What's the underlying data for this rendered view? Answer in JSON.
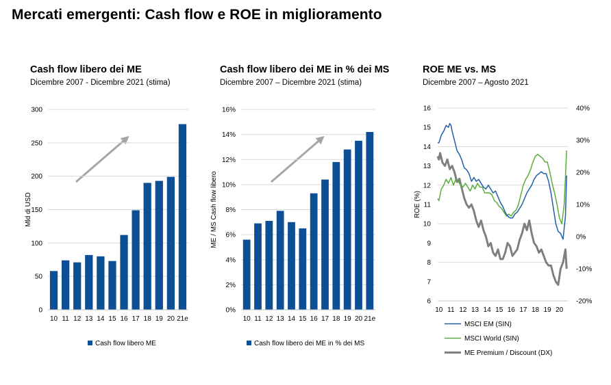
{
  "page_title": "Mercati emergenti: Cash flow e ROE in miglioramento",
  "colors": {
    "bar": "#0d4f94",
    "em": "#1f5ea8",
    "world": "#5aac3a",
    "premium": "#7f7f7f",
    "grid": "#d9d9d9",
    "arrow": "#a6a6a6"
  },
  "chart_data": [
    {
      "type": "bar",
      "title": "Cash flow libero dei ME",
      "subtitle": "Dicembre 2007 - Dicembre 2021 (stima)",
      "ylabel": "Mld di USD",
      "categories": [
        "10",
        "11",
        "12",
        "13",
        "14",
        "15",
        "16",
        "17",
        "18",
        "19",
        "20",
        "21e"
      ],
      "values": [
        58,
        74,
        71,
        82,
        80,
        73,
        112,
        149,
        190,
        193,
        199,
        278
      ],
      "ylim": [
        0,
        300
      ],
      "yticks": [
        "0",
        "50",
        "100",
        "150",
        "200",
        "250",
        "300"
      ],
      "legend": "Cash flow libero ME",
      "grid": true
    },
    {
      "type": "bar",
      "title": "Cash flow libero dei ME in % dei MS",
      "subtitle": "Dicembre 2007 – Dicembre 2021 (stima)",
      "ylabel": "ME / MS Cash flow libero",
      "categories": [
        "10",
        "11",
        "12",
        "13",
        "14",
        "15",
        "16",
        "17",
        "18",
        "19",
        "20",
        "21e"
      ],
      "values": [
        5.6,
        6.9,
        7.1,
        7.9,
        7.0,
        6.5,
        9.3,
        10.4,
        11.8,
        12.8,
        13.5,
        14.2
      ],
      "ylim": [
        0,
        16
      ],
      "yticks": [
        "0%",
        "2%",
        "4%",
        "6%",
        "8%",
        "10%",
        "12%",
        "14%",
        "16%"
      ],
      "legend": "Cash flow libero dei ME in % dei MS",
      "grid": true
    },
    {
      "type": "line",
      "title": "ROE ME vs. MS",
      "subtitle": "Dicembre 2007 – Agosto 2021",
      "ylabel": "ROE (%)",
      "x_ticks": [
        "10",
        "11",
        "12",
        "13",
        "14",
        "15",
        "16",
        "17",
        "18",
        "19",
        "20"
      ],
      "ylim_left": [
        6,
        16
      ],
      "ylim_right": [
        -20,
        40
      ],
      "yticks_left": [
        "6",
        "7",
        "8",
        "9",
        "10",
        "11",
        "12",
        "13",
        "14",
        "15",
        "16"
      ],
      "yticks_right": [
        "-20%",
        "-10%",
        "0%",
        "10%",
        "20%",
        "30%",
        "40%"
      ],
      "grid": true,
      "series": [
        {
          "name": "MSCI EM (SIN)",
          "axis": "left",
          "x": [
            2009.9,
            2010.0,
            2010.2,
            2010.4,
            2010.6,
            2010.8,
            2010.9,
            2011.0,
            2011.1,
            2011.3,
            2011.5,
            2011.7,
            2011.9,
            2012.1,
            2012.3,
            2012.5,
            2012.7,
            2012.9,
            2013.1,
            2013.3,
            2013.5,
            2013.7,
            2013.9,
            2014.1,
            2014.3,
            2014.5,
            2014.7,
            2014.9,
            2015.1,
            2015.3,
            2015.5,
            2015.7,
            2015.9,
            2016.1,
            2016.3,
            2016.5,
            2016.7,
            2016.9,
            2017.1,
            2017.3,
            2017.5,
            2017.7,
            2017.9,
            2018.1,
            2018.3,
            2018.5,
            2018.7,
            2018.9,
            2019.1,
            2019.3,
            2019.5,
            2019.7,
            2019.9,
            2020.1,
            2020.3,
            2020.5,
            2020.6
          ],
          "values": [
            14.2,
            14.2,
            14.6,
            14.8,
            15.1,
            15.0,
            15.2,
            15.1,
            14.8,
            14.3,
            13.8,
            13.6,
            13.3,
            12.9,
            12.8,
            12.6,
            12.2,
            12.4,
            12.2,
            12.3,
            12.1,
            11.9,
            11.8,
            12.0,
            11.8,
            11.6,
            11.7,
            11.4,
            11.1,
            10.9,
            10.6,
            10.4,
            10.3,
            10.3,
            10.5,
            10.6,
            10.8,
            11.0,
            11.3,
            11.6,
            11.8,
            12.0,
            12.3,
            12.5,
            12.6,
            12.7,
            12.6,
            12.6,
            12.2,
            11.6,
            10.8,
            10.0,
            9.6,
            9.5,
            9.2,
            10.4,
            12.5
          ]
        },
        {
          "name": "MSCI World (SIN)",
          "axis": "left",
          "x": [
            2009.9,
            2010.0,
            2010.2,
            2010.4,
            2010.6,
            2010.8,
            2011.0,
            2011.2,
            2011.4,
            2011.6,
            2011.8,
            2012.0,
            2012.2,
            2012.4,
            2012.6,
            2012.8,
            2013.0,
            2013.2,
            2013.4,
            2013.6,
            2013.8,
            2014.0,
            2014.2,
            2014.4,
            2014.6,
            2014.8,
            2015.0,
            2015.2,
            2015.4,
            2015.6,
            2015.8,
            2016.0,
            2016.2,
            2016.4,
            2016.6,
            2016.8,
            2017.0,
            2017.2,
            2017.4,
            2017.6,
            2017.8,
            2018.0,
            2018.2,
            2018.4,
            2018.6,
            2018.8,
            2019.0,
            2019.2,
            2019.4,
            2019.6,
            2019.8,
            2020.0,
            2020.2,
            2020.4,
            2020.6
          ],
          "values": [
            11.3,
            11.2,
            11.8,
            12.0,
            12.3,
            12.1,
            12.4,
            12.0,
            12.3,
            12.2,
            12.0,
            11.9,
            12.1,
            11.9,
            11.7,
            12.0,
            11.8,
            12.1,
            11.9,
            11.9,
            11.6,
            11.6,
            11.6,
            11.5,
            11.2,
            11.1,
            10.9,
            10.8,
            10.6,
            10.4,
            10.5,
            10.4,
            10.6,
            10.7,
            11.0,
            11.5,
            12.0,
            12.3,
            12.5,
            12.8,
            13.2,
            13.5,
            13.6,
            13.5,
            13.4,
            13.2,
            13.2,
            12.7,
            12.1,
            11.6,
            11.0,
            10.3,
            10.0,
            11.0,
            13.8
          ]
        },
        {
          "name": "ME Premium / Discount (DX)",
          "axis": "right",
          "x": [
            2009.9,
            2010.0,
            2010.1,
            2010.3,
            2010.5,
            2010.7,
            2010.9,
            2011.1,
            2011.3,
            2011.5,
            2011.7,
            2011.9,
            2012.1,
            2012.3,
            2012.5,
            2012.7,
            2012.9,
            2013.1,
            2013.3,
            2013.5,
            2013.7,
            2013.9,
            2014.1,
            2014.3,
            2014.5,
            2014.7,
            2014.9,
            2015.1,
            2015.3,
            2015.5,
            2015.7,
            2015.9,
            2016.1,
            2016.3,
            2016.5,
            2016.7,
            2016.9,
            2017.1,
            2017.3,
            2017.5,
            2017.7,
            2017.9,
            2018.1,
            2018.3,
            2018.5,
            2018.7,
            2018.9,
            2019.1,
            2019.3,
            2019.5,
            2019.7,
            2019.9,
            2020.1,
            2020.3,
            2020.5,
            2020.6
          ],
          "values": [
            25,
            24,
            26,
            23,
            22,
            24,
            21,
            22,
            20,
            17,
            18,
            15,
            12,
            10,
            9,
            10,
            8,
            5,
            3,
            5,
            2,
            0,
            -3,
            -2,
            -5,
            -6,
            -4,
            -7,
            -7,
            -5,
            -2,
            -3,
            -6,
            -5,
            -4,
            -1,
            1,
            4,
            2,
            5,
            1,
            -2,
            -3,
            -5,
            -4,
            -6,
            -8,
            -9,
            -9,
            -12,
            -14,
            -15,
            -10,
            -8,
            -4,
            -10
          ]
        }
      ]
    }
  ]
}
